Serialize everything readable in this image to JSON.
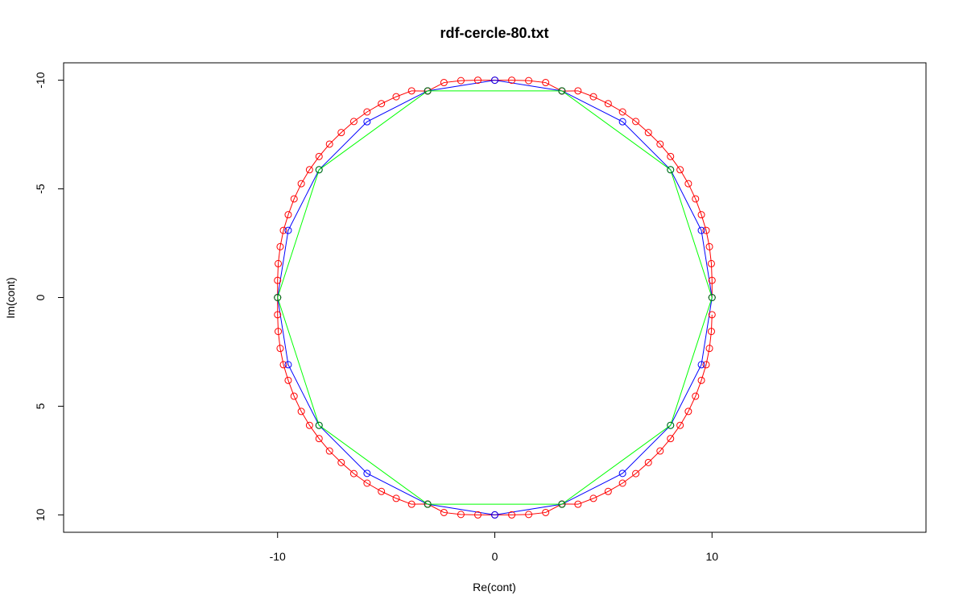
{
  "chart_data": {
    "type": "scatter",
    "title": "rdf-cercle-80.txt",
    "xlabel": "Re(cont)",
    "ylabel": "Im(cont)",
    "xlim": [
      -19.85,
      19.85
    ],
    "ylim": [
      -10.8,
      10.8
    ],
    "y_axis_inverted": true,
    "x_ticks": [
      -10,
      0,
      10
    ],
    "x_tick_labels": [
      "-10",
      "0",
      "10"
    ],
    "y_ticks": [
      -10,
      -5,
      0,
      5,
      10
    ],
    "y_tick_labels": [
      "-10",
      "-5",
      "0",
      "5",
      "10"
    ],
    "grid": false,
    "legend": "none",
    "series": [
      {
        "color": "#ff0000",
        "marker": "open-circle",
        "line": true,
        "closed": false,
        "points": [
          [
            10,
            0.79
          ],
          [
            9.97,
            1.56
          ],
          [
            9.88,
            2.34
          ],
          [
            9.73,
            3.09
          ],
          [
            9.51,
            3.81
          ],
          [
            9.24,
            4.54
          ],
          [
            8.91,
            5.24
          ],
          [
            8.53,
            5.88
          ],
          [
            8.09,
            6.49
          ],
          [
            7.61,
            7.06
          ],
          [
            7.07,
            7.59
          ],
          [
            6.49,
            8.1
          ],
          [
            5.88,
            8.54
          ],
          [
            5.22,
            8.92
          ],
          [
            4.54,
            9.24
          ],
          [
            3.83,
            9.51
          ],
          [
            3.09,
            9.5
          ],
          [
            2.34,
            9.89
          ],
          [
            1.56,
            9.98
          ],
          [
            0.78,
            10.0
          ],
          [
            0,
            10.0
          ],
          [
            -0.78,
            10.0
          ],
          [
            -1.56,
            9.98
          ],
          [
            -2.34,
            9.89
          ],
          [
            -3.09,
            9.5
          ],
          [
            -3.83,
            9.51
          ],
          [
            -4.54,
            9.24
          ],
          [
            -5.22,
            8.92
          ],
          [
            -5.88,
            8.54
          ],
          [
            -6.49,
            8.1
          ],
          [
            -7.07,
            7.59
          ],
          [
            -7.61,
            7.06
          ],
          [
            -8.09,
            6.49
          ],
          [
            -8.53,
            5.88
          ],
          [
            -8.91,
            5.24
          ],
          [
            -9.24,
            4.54
          ],
          [
            -9.51,
            3.81
          ],
          [
            -9.73,
            3.09
          ],
          [
            -9.88,
            2.34
          ],
          [
            -9.97,
            1.56
          ],
          [
            -10,
            0.79
          ],
          [
            -10,
            0
          ],
          [
            -10,
            -0.79
          ],
          [
            -9.97,
            -1.56
          ],
          [
            -9.88,
            -2.34
          ],
          [
            -9.73,
            -3.09
          ],
          [
            -9.51,
            -3.81
          ],
          [
            -9.24,
            -4.54
          ],
          [
            -8.91,
            -5.24
          ],
          [
            -8.53,
            -5.88
          ],
          [
            -8.09,
            -6.49
          ],
          [
            -7.61,
            -7.06
          ],
          [
            -7.07,
            -7.59
          ],
          [
            -6.49,
            -8.1
          ],
          [
            -5.88,
            -8.54
          ],
          [
            -5.22,
            -8.92
          ],
          [
            -4.54,
            -9.24
          ],
          [
            -3.83,
            -9.51
          ],
          [
            -3.09,
            -9.5
          ],
          [
            -2.34,
            -9.89
          ],
          [
            -1.56,
            -9.98
          ],
          [
            -0.78,
            -10.0
          ],
          [
            0,
            -10.0
          ],
          [
            0.78,
            -10.0
          ],
          [
            1.56,
            -9.98
          ],
          [
            2.34,
            -9.89
          ],
          [
            3.09,
            -9.5
          ],
          [
            3.83,
            -9.51
          ],
          [
            4.54,
            -9.24
          ],
          [
            5.22,
            -8.92
          ],
          [
            5.88,
            -8.54
          ],
          [
            6.49,
            -8.1
          ],
          [
            7.07,
            -7.59
          ],
          [
            7.61,
            -7.06
          ],
          [
            8.09,
            -6.49
          ],
          [
            8.53,
            -5.88
          ],
          [
            8.91,
            -5.24
          ],
          [
            9.24,
            -4.54
          ],
          [
            9.51,
            -3.81
          ],
          [
            9.73,
            -3.09
          ],
          [
            9.88,
            -2.34
          ],
          [
            9.97,
            -1.56
          ],
          [
            10,
            -0.79
          ],
          [
            10,
            0
          ]
        ]
      },
      {
        "color": "#0000ff",
        "marker": "open-circle",
        "line": true,
        "closed": true,
        "points": [
          [
            10,
            0
          ],
          [
            9.51,
            3.09
          ],
          [
            8.09,
            5.88
          ],
          [
            5.88,
            8.09
          ],
          [
            3.09,
            9.51
          ],
          [
            0,
            10
          ],
          [
            -3.09,
            9.51
          ],
          [
            -5.88,
            8.09
          ],
          [
            -8.09,
            5.88
          ],
          [
            -9.51,
            3.09
          ],
          [
            -10,
            0
          ],
          [
            -9.51,
            -3.09
          ],
          [
            -8.09,
            -5.88
          ],
          [
            -5.88,
            -8.09
          ],
          [
            -3.09,
            -9.51
          ],
          [
            0,
            -10
          ],
          [
            3.09,
            -9.51
          ],
          [
            5.88,
            -8.09
          ],
          [
            8.09,
            -5.88
          ],
          [
            9.51,
            -3.09
          ]
        ]
      },
      {
        "color": "#00ff00",
        "marker_color": "#008000",
        "marker": "open-circle",
        "line": true,
        "closed": true,
        "points": [
          [
            10,
            0
          ],
          [
            8.09,
            5.88
          ],
          [
            3.09,
            9.51
          ],
          [
            -3.09,
            9.51
          ],
          [
            -8.09,
            5.88
          ],
          [
            -10,
            0
          ],
          [
            -8.09,
            -5.88
          ],
          [
            -3.09,
            -9.51
          ],
          [
            3.09,
            -9.51
          ],
          [
            8.09,
            -5.88
          ]
        ]
      }
    ]
  }
}
